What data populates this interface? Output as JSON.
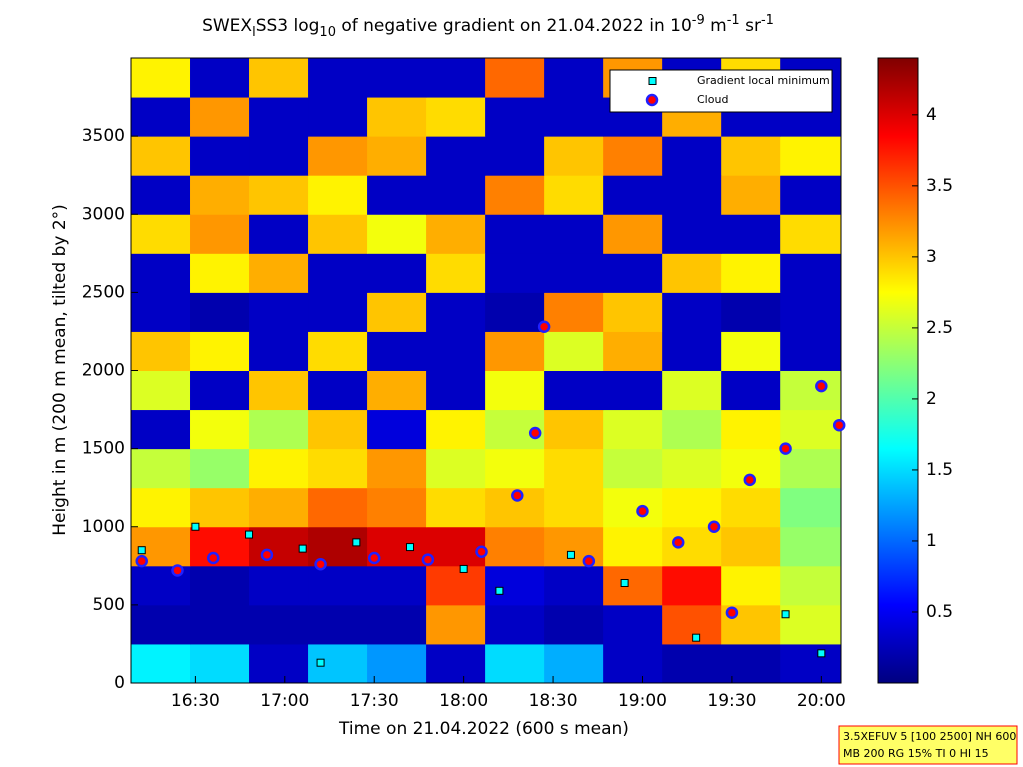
{
  "chart_data": {
    "type": "heatmap",
    "title_parts": [
      "SWEX",
      "l",
      "SS3 log",
      "10",
      " of negative gradient on 21.04.2022 in 10",
      "-9",
      " m",
      "-1",
      " sr",
      "-1"
    ],
    "xlabel": "Time on 21.04.2022 (600 s mean)",
    "ylabel": "Height in m (200 m mean, tilted by 2°)",
    "xlim": [
      16.14,
      20.11
    ],
    "ylim": [
      0,
      4000
    ],
    "xticks": [
      {
        "value": 16.5,
        "label": "16:30"
      },
      {
        "value": 17,
        "label": "17:00"
      },
      {
        "value": 17.5,
        "label": "17:30"
      },
      {
        "value": 18,
        "label": "18:00"
      },
      {
        "value": 18.5,
        "label": "18:30"
      },
      {
        "value": 19,
        "label": "19:00"
      },
      {
        "value": 19.5,
        "label": "19:30"
      },
      {
        "value": 20,
        "label": "20:00"
      }
    ],
    "yticks": [
      0,
      500,
      1000,
      1500,
      2000,
      2500,
      3000,
      3500
    ],
    "colormap": "jet",
    "clim": [
      0,
      4.4
    ],
    "cticks": [
      0.5,
      1,
      1.5,
      2,
      2.5,
      3,
      3.5,
      4
    ],
    "xbins": [
      16.14,
      16.47,
      16.8,
      17.13,
      17.46,
      17.79,
      18.12,
      18.45,
      18.78,
      19.11,
      19.44,
      19.77,
      20.11
    ],
    "ybins": [
      0,
      250,
      500,
      750,
      1000,
      1250,
      1500,
      1750,
      2000,
      2250,
      2500,
      2750,
      3000,
      3250,
      3500,
      3750,
      4000
    ],
    "z": [
      [
        1.6,
        1.5,
        0.3,
        1.4,
        1.2,
        0.3,
        1.5,
        1.3,
        0.3,
        0.2,
        0.2,
        0.3
      ],
      [
        0.2,
        0.2,
        0.2,
        0.2,
        0.2,
        3.2,
        0.3,
        0.2,
        0.3,
        3.5,
        3.0,
        2.6
      ],
      [
        0.3,
        0.2,
        0.3,
        0.3,
        0.3,
        3.6,
        0.4,
        0.3,
        3.4,
        3.8,
        2.8,
        2.5
      ],
      [
        3.2,
        3.8,
        4.1,
        4.2,
        4.0,
        4.0,
        3.3,
        3.2,
        2.8,
        2.9,
        3.0,
        2.3
      ],
      [
        2.8,
        3.0,
        3.1,
        3.4,
        3.3,
        2.9,
        3.0,
        2.9,
        2.7,
        2.8,
        2.9,
        2.2
      ],
      [
        2.5,
        2.3,
        2.8,
        2.9,
        3.2,
        2.6,
        2.7,
        2.9,
        2.5,
        2.6,
        2.7,
        2.4
      ],
      [
        0.3,
        2.7,
        2.4,
        3.0,
        0.4,
        2.8,
        2.5,
        3.0,
        2.6,
        2.4,
        2.8,
        2.6
      ],
      [
        2.6,
        0.3,
        3.0,
        0.3,
        3.1,
        0.3,
        2.7,
        0.3,
        0.3,
        2.6,
        0.3,
        2.5
      ],
      [
        3.0,
        2.8,
        0.3,
        2.9,
        0.3,
        0.3,
        3.2,
        2.6,
        3.1,
        0.3,
        2.7,
        0.3
      ],
      [
        0.3,
        0.2,
        0.3,
        0.3,
        3.0,
        0.3,
        0.2,
        3.3,
        3.0,
        0.3,
        0.2,
        0.3
      ],
      [
        0.3,
        2.8,
        3.1,
        0.3,
        0.3,
        2.9,
        0.3,
        0.3,
        0.3,
        3.0,
        2.8,
        0.3
      ],
      [
        2.9,
        3.2,
        0.3,
        3.0,
        2.7,
        3.1,
        0.3,
        0.3,
        3.2,
        0.3,
        0.3,
        2.9
      ],
      [
        0.3,
        3.1,
        3.0,
        2.8,
        0.3,
        0.3,
        3.3,
        2.9,
        0.3,
        0.3,
        3.1,
        0.3
      ],
      [
        3.0,
        0.3,
        0.3,
        3.2,
        3.1,
        0.3,
        0.3,
        3.0,
        3.3,
        0.3,
        3.0,
        2.8
      ],
      [
        0.3,
        3.2,
        0.3,
        0.3,
        3.0,
        2.9,
        0.3,
        0.3,
        0.3,
        3.1,
        0.3,
        0.3
      ],
      [
        2.8,
        0.3,
        3.0,
        0.3,
        0.3,
        0.3,
        3.4,
        0.3,
        3.2,
        0.3,
        2.9,
        0.3
      ]
    ],
    "series": [
      {
        "name": "Gradient local minimum",
        "color": "#00ffff",
        "x": [
          16.2,
          16.5,
          16.8,
          17.1,
          17.4,
          17.7,
          18.0,
          18.2,
          18.6,
          18.9,
          19.3,
          19.8,
          20.0,
          17.2
        ],
        "y": [
          850,
          1000,
          950,
          860,
          900,
          870,
          730,
          590,
          820,
          640,
          290,
          440,
          190,
          130
        ]
      },
      {
        "name": "Cloud",
        "color": "#ff0000",
        "x": [
          16.2,
          16.4,
          16.6,
          16.9,
          17.2,
          17.5,
          17.8,
          18.1,
          18.3,
          18.4,
          18.45,
          18.7,
          19.0,
          19.2,
          19.4,
          19.6,
          19.8,
          20.0,
          20.1,
          19.5
        ],
        "y": [
          780,
          720,
          800,
          820,
          760,
          800,
          790,
          840,
          1200,
          1600,
          2280,
          780,
          1100,
          900,
          1000,
          1300,
          1500,
          1900,
          1650,
          450
        ]
      }
    ],
    "annotation": [
      "3.5XEFUV 5 [100 2500] NH 600",
      "MB 200 RG 15% TI 0 HI 15"
    ]
  }
}
